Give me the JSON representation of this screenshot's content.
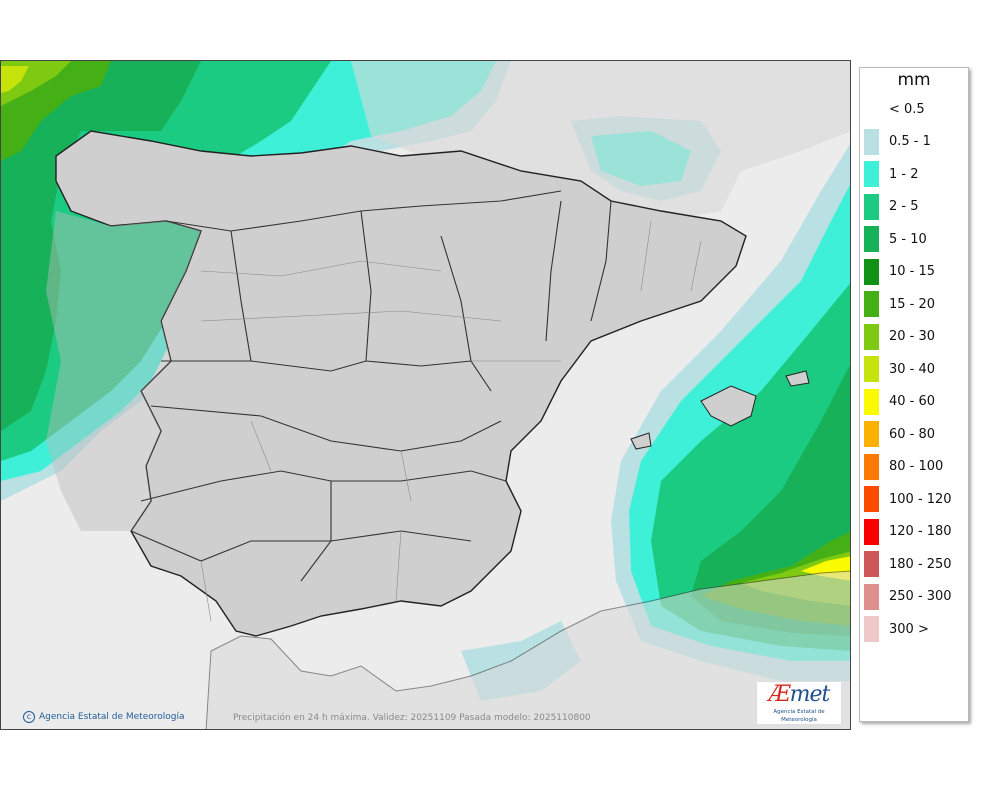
{
  "map": {
    "caption": "Precipitación en 24 h máxima. Validez: 20251109 Pasada modelo: 2025110800",
    "copyright": "Agencia Estatal de Meteorología",
    "logo_mark_a": "Æ",
    "logo_mark_b": "met",
    "logo_subtitle": "Agencia Estatal de Meteorología",
    "colors": {
      "sea": "#ececec",
      "land": "#d9d9d9",
      "border": "#333333"
    }
  },
  "legend": {
    "unit": "mm",
    "classes": [
      {
        "label": "< 0.5",
        "color": "#ffffff"
      },
      {
        "label": "0.5 - 1",
        "color": "#b9e0e3"
      },
      {
        "label": "1 - 2",
        "color": "#3ff0d8"
      },
      {
        "label": "2 - 5",
        "color": "#1bcb82"
      },
      {
        "label": "5 - 10",
        "color": "#17b159"
      },
      {
        "label": "10 - 15",
        "color": "#119116"
      },
      {
        "label": "15 - 20",
        "color": "#45b015"
      },
      {
        "label": "20 - 30",
        "color": "#7ec912"
      },
      {
        "label": "30 - 40",
        "color": "#c6e40c"
      },
      {
        "label": "40 - 60",
        "color": "#fbfb00"
      },
      {
        "label": "60 - 80",
        "color": "#fcb100"
      },
      {
        "label": "80 - 100",
        "color": "#fc7a00"
      },
      {
        "label": "100 - 120",
        "color": "#fc4b00"
      },
      {
        "label": "120 - 180",
        "color": "#fb0000"
      },
      {
        "label": "180 - 250",
        "color": "#cf5757"
      },
      {
        "label": "250 - 300",
        "color": "#df8e8e"
      },
      {
        "label": "300 >",
        "color": "#efc9c9"
      }
    ]
  }
}
